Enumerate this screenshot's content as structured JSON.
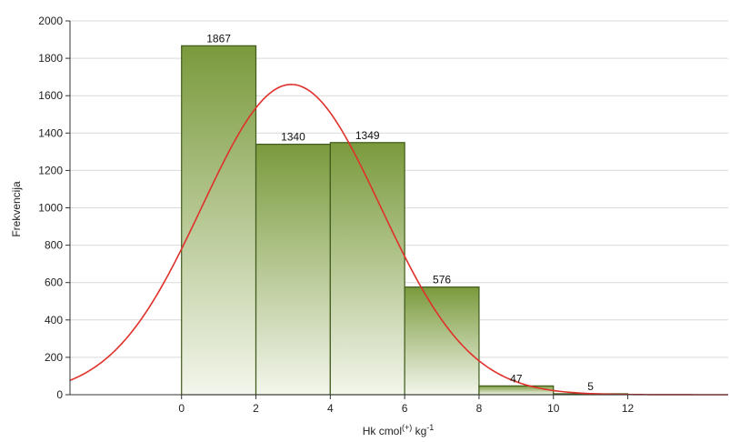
{
  "chart_data": {
    "type": "bar",
    "title": "",
    "xlabel_main": "Hk cmol",
    "xlabel_sup": "(+)",
    "xlabel_mid": " kg",
    "xlabel_sup2": "-1",
    "ylabel": "Frekvencija",
    "xlim": [
      -3,
      14.7
    ],
    "ylim": [
      0,
      2000
    ],
    "x_ticks": [
      0,
      2,
      4,
      6,
      8,
      10,
      12
    ],
    "y_ticks": [
      0,
      200,
      400,
      600,
      800,
      1000,
      1200,
      1400,
      1600,
      1800,
      2000
    ],
    "bins": [
      {
        "from": 0,
        "to": 2,
        "value": 1867,
        "label": "1867"
      },
      {
        "from": 2,
        "to": 4,
        "value": 1340,
        "label": "1340"
      },
      {
        "from": 4,
        "to": 6,
        "value": 1349,
        "label": "1349"
      },
      {
        "from": 6,
        "to": 8,
        "value": 576,
        "label": "576"
      },
      {
        "from": 8,
        "to": 10,
        "value": 47,
        "label": "47"
      },
      {
        "from": 10,
        "to": 12,
        "value": 5,
        "label": "5"
      }
    ],
    "normal_curve": {
      "mean": 2.95,
      "sd": 2.4,
      "peak": 1660
    },
    "grid": true,
    "colors": {
      "bar_top": "#7a9a3c",
      "bar_bottom": "#f3f6ec",
      "bar_stroke": "#3f5a1a",
      "curve": "#e0302a",
      "grid": "#d9d9d9",
      "axis": "#333333"
    }
  }
}
